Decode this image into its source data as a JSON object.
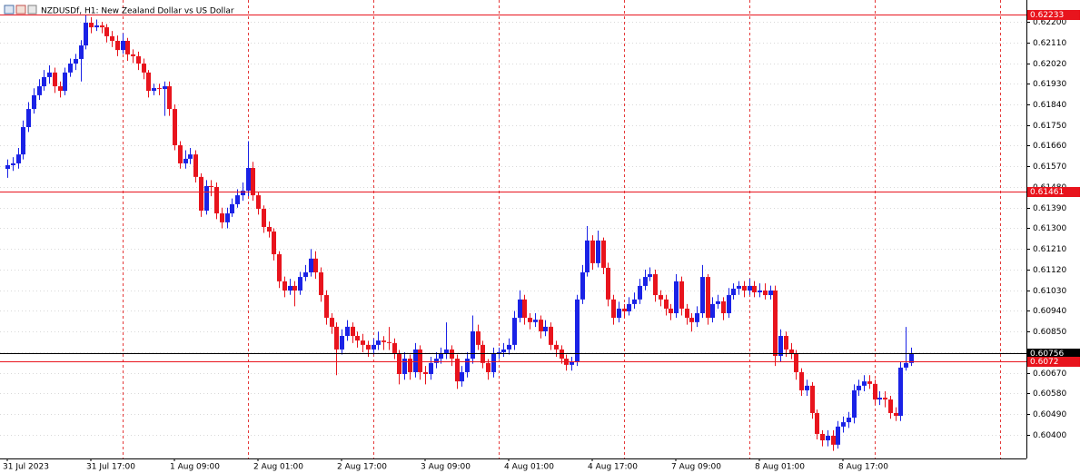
{
  "chart_data": {
    "type": "candlestick",
    "title": "NZDUSDf, H1:  New Zealand Dollar vs US Dollar",
    "up_color": "#1a22e6",
    "down_color": "#e8141d",
    "ylim": [
      0.60297,
      0.62295
    ],
    "yticks": [
      {
        "value": 0.622,
        "label": "0.62200"
      },
      {
        "value": 0.6211,
        "label": "0.62110"
      },
      {
        "value": 0.6202,
        "label": "0.62020"
      },
      {
        "value": 0.6193,
        "label": "0.61930"
      },
      {
        "value": 0.6184,
        "label": "0.61840"
      },
      {
        "value": 0.6175,
        "label": "0.61750"
      },
      {
        "value": 0.6166,
        "label": "0.61660"
      },
      {
        "value": 0.6157,
        "label": "0.61570"
      },
      {
        "value": 0.6148,
        "label": "0.61480"
      },
      {
        "value": 0.6139,
        "label": "0.61390"
      },
      {
        "value": 0.613,
        "label": "0.61300"
      },
      {
        "value": 0.6121,
        "label": "0.61210"
      },
      {
        "value": 0.6112,
        "label": "0.61120"
      },
      {
        "value": 0.6103,
        "label": "0.61030"
      },
      {
        "value": 0.6094,
        "label": "0.60940"
      },
      {
        "value": 0.6085,
        "label": "0.60850"
      },
      {
        "value": 0.6076,
        "label": "0.60760"
      },
      {
        "value": 0.6067,
        "label": "0.60670"
      },
      {
        "value": 0.6058,
        "label": "0.60580"
      },
      {
        "value": 0.6049,
        "label": "0.60490"
      },
      {
        "value": 0.604,
        "label": "0.60400"
      }
    ],
    "grid": true,
    "levels": [
      {
        "value": 0.62233,
        "color": "#e8141d"
      },
      {
        "value": 0.61461,
        "color": "#e8141d"
      },
      {
        "value": 0.60756,
        "color": "#000000"
      },
      {
        "value": 0.6072,
        "color": "#e8141d"
      }
    ],
    "categories": [
      "31 Jul 2023",
      null,
      null,
      null,
      null,
      null,
      null,
      null,
      null,
      null,
      null,
      null,
      null,
      null,
      null,
      null,
      "31 Jul 17:00",
      null,
      null,
      null,
      null,
      null,
      null,
      null,
      null,
      null,
      null,
      null,
      null,
      null,
      null,
      null,
      "1 Aug 09:00",
      null,
      null,
      null,
      null,
      null,
      null,
      null,
      null,
      null,
      null,
      null,
      null,
      null,
      null,
      null,
      "2 Aug 01:00",
      null,
      null,
      null,
      null,
      null,
      null,
      null,
      null,
      null,
      null,
      null,
      null,
      null,
      null,
      null,
      "2 Aug 17:00",
      null,
      null,
      null,
      null,
      null,
      null,
      null,
      null,
      null,
      null,
      null,
      null,
      null,
      null,
      null,
      "3 Aug 09:00",
      null,
      null,
      null,
      null,
      null,
      null,
      null,
      null,
      null,
      null,
      null,
      null,
      null,
      null,
      null,
      "4 Aug 01:00",
      null,
      null,
      null,
      null,
      null,
      null,
      null,
      null,
      null,
      null,
      null,
      null,
      null,
      null,
      null,
      "4 Aug 17:00",
      null,
      null,
      null,
      null,
      null,
      null,
      null,
      null,
      null,
      null,
      null,
      null,
      null,
      null,
      null,
      "7 Aug 09:00",
      null,
      null,
      null,
      null,
      null,
      null,
      null,
      null,
      null,
      null,
      null,
      null,
      null,
      null,
      null,
      "8 Aug 01:00",
      null,
      null,
      null,
      null,
      null,
      null,
      null,
      null,
      null,
      null,
      null,
      null,
      null,
      null,
      null,
      "8 Aug 17:00",
      null,
      null,
      null,
      null,
      null,
      null,
      null,
      null,
      null,
      null,
      null,
      null,
      null
    ],
    "open": [
      0.61559,
      0.61575,
      0.61583,
      0.61622,
      0.61741,
      0.6182,
      0.6188,
      0.61919,
      0.61959,
      0.61979,
      0.61919,
      0.61899,
      0.61979,
      0.62018,
      0.62038,
      0.62097,
      0.62196,
      0.62176,
      0.62184,
      0.62176,
      0.62137,
      0.62117,
      0.62077,
      0.62117,
      0.62058,
      0.6205,
      0.62018,
      0.61979,
      0.61899,
      0.61911,
      0.61907,
      0.61919,
      0.6182,
      0.61662,
      0.61583,
      0.61603,
      0.61622,
      0.61524,
      0.61377,
      0.61484,
      0.6148,
      0.61365,
      0.61326,
      0.61365,
      0.61405,
      0.61444,
      0.61464,
      0.61563,
      0.61444,
      0.61385,
      0.61306,
      0.61286,
      0.61187,
      0.61069,
      0.61029,
      0.61049,
      0.61029,
      0.61088,
      0.61108,
      0.61168,
      0.61108,
      0.61009,
      0.6091,
      0.60871,
      0.60772,
      0.60831,
      0.60871,
      0.60831,
      0.60811,
      0.60792,
      0.60772,
      0.60792,
      0.60811,
      0.60804,
      0.608,
      0.60752,
      0.60665,
      0.60732,
      0.60673,
      0.60772,
      0.60673,
      0.60665,
      0.60713,
      0.60732,
      0.60752,
      0.60772,
      0.60732,
      0.60633,
      0.60673,
      0.60732,
      0.60851,
      0.60792,
      0.60713,
      0.60673,
      0.60752,
      0.6076,
      0.60772,
      0.60792,
      0.6091,
      0.6099,
      0.6091,
      0.60891,
      0.60902,
      0.60851,
      0.60871,
      0.60792,
      0.60772,
      0.60732,
      0.60705,
      0.6072,
      0.6099,
      0.61108,
      0.61247,
      0.61148,
      0.61247,
      0.61128,
      0.6099,
      0.6091,
      0.6095,
      0.60938,
      0.6097,
      0.6099,
      0.61049,
      0.61088,
      0.611,
      0.61009,
      0.6099,
      0.6095,
      0.6093,
      0.61069,
      0.6095,
      0.6091,
      0.60891,
      0.6093,
      0.61088,
      0.6091,
      0.6097,
      0.60982,
      0.6093,
      0.61009,
      0.61037,
      0.61049,
      0.61029,
      0.61049,
      0.61021,
      0.61029,
      0.61009,
      0.61029,
      0.60744,
      0.60831,
      0.60772,
      0.60752,
      0.60673,
      0.60594,
      0.60614,
      0.60495,
      0.60404,
      0.60376,
      0.60396,
      0.60357,
      0.60436,
      0.60455,
      0.60475,
      0.60594,
      0.60614,
      0.60633,
      0.60622,
      0.60554,
      0.60562,
      0.60554,
      0.60495,
      0.60483,
      0.60693,
      0.60713
    ],
    "high": [
      0.616,
      0.6161,
      0.6165,
      0.6177,
      0.6185,
      0.6191,
      0.6195,
      0.6199,
      0.6201,
      0.62,
      0.6194,
      0.62,
      0.6204,
      0.6206,
      0.6212,
      0.6223,
      0.6222,
      0.6221,
      0.622,
      0.6219,
      0.6216,
      0.6214,
      0.6215,
      0.6213,
      0.6208,
      0.6207,
      0.6204,
      0.6199,
      0.6193,
      0.6193,
      0.6194,
      0.6194,
      0.6184,
      0.6168,
      0.6164,
      0.6165,
      0.6164,
      0.6154,
      0.6151,
      0.6151,
      0.615,
      0.6139,
      0.6139,
      0.6143,
      0.6147,
      0.615,
      0.6168,
      0.6159,
      0.6146,
      0.614,
      0.6133,
      0.613,
      0.612,
      0.6109,
      0.6108,
      0.6107,
      0.6111,
      0.6114,
      0.6121,
      0.612,
      0.6113,
      0.6103,
      0.6093,
      0.6089,
      0.6086,
      0.609,
      0.6089,
      0.6085,
      0.6084,
      0.6081,
      0.6082,
      0.6085,
      0.6083,
      0.6087,
      0.6082,
      0.6077,
      0.6076,
      0.6075,
      0.608,
      0.6079,
      0.607,
      0.6074,
      0.6076,
      0.6078,
      0.6089,
      0.6079,
      0.6075,
      0.607,
      0.6076,
      0.6092,
      0.6088,
      0.6081,
      0.6073,
      0.6078,
      0.6078,
      0.608,
      0.6082,
      0.6094,
      0.6103,
      0.6101,
      0.6093,
      0.6093,
      0.6092,
      0.609,
      0.6089,
      0.6081,
      0.6079,
      0.6075,
      0.6074,
      0.6101,
      0.6114,
      0.6131,
      0.6127,
      0.6129,
      0.6126,
      0.6115,
      0.6101,
      0.6098,
      0.6097,
      0.61,
      0.6102,
      0.6108,
      0.6112,
      0.6113,
      0.6112,
      0.6103,
      0.6101,
      0.6097,
      0.611,
      0.6109,
      0.6097,
      0.6093,
      0.6096,
      0.6114,
      0.611,
      0.61,
      0.6101,
      0.61,
      0.6104,
      0.6106,
      0.6107,
      0.6107,
      0.6108,
      0.6107,
      0.6106,
      0.6106,
      0.6105,
      0.6105,
      0.6086,
      0.6085,
      0.608,
      0.6077,
      0.6069,
      0.6064,
      0.6063,
      0.6051,
      0.6042,
      0.6042,
      0.6042,
      0.6046,
      0.6048,
      0.605,
      0.6062,
      0.6064,
      0.6066,
      0.6066,
      0.6064,
      0.6059,
      0.6059,
      0.6057,
      0.6052,
      0.6072,
      0.6087,
      0.6078
    ],
    "low": [
      0.6152,
      0.6155,
      0.6156,
      0.616,
      0.6172,
      0.618,
      0.6186,
      0.619,
      0.6193,
      0.6189,
      0.6187,
      0.6188,
      0.6196,
      0.6199,
      0.6194,
      0.6208,
      0.6215,
      0.6216,
      0.6215,
      0.6211,
      0.6209,
      0.6205,
      0.6206,
      0.6203,
      0.6202,
      0.6199,
      0.6195,
      0.6187,
      0.6188,
      0.6188,
      0.6179,
      0.6179,
      0.6164,
      0.6156,
      0.6156,
      0.6158,
      0.615,
      0.6135,
      0.6136,
      0.6144,
      0.6134,
      0.613,
      0.613,
      0.6135,
      0.6139,
      0.6142,
      0.6144,
      0.6142,
      0.6136,
      0.6128,
      0.6126,
      0.6116,
      0.6104,
      0.61,
      0.6101,
      0.6096,
      0.6101,
      0.6107,
      0.6109,
      0.6108,
      0.6098,
      0.6088,
      0.6084,
      0.6066,
      0.6075,
      0.6081,
      0.608,
      0.6078,
      0.6076,
      0.6074,
      0.6075,
      0.6077,
      0.6077,
      0.6077,
      0.6073,
      0.6062,
      0.6064,
      0.6064,
      0.6065,
      0.6064,
      0.6062,
      0.6064,
      0.6069,
      0.6071,
      0.6073,
      0.607,
      0.606,
      0.6061,
      0.6065,
      0.6071,
      0.6077,
      0.6069,
      0.6064,
      0.6065,
      0.6073,
      0.6074,
      0.6075,
      0.6077,
      0.6089,
      0.6088,
      0.6086,
      0.6087,
      0.6082,
      0.6083,
      0.6077,
      0.6074,
      0.6071,
      0.6068,
      0.6068,
      0.607,
      0.6097,
      0.6109,
      0.6112,
      0.6113,
      0.611,
      0.6096,
      0.6088,
      0.6089,
      0.6091,
      0.6092,
      0.6095,
      0.6097,
      0.6103,
      0.6107,
      0.6098,
      0.6096,
      0.6092,
      0.609,
      0.6091,
      0.6092,
      0.6088,
      0.6085,
      0.6087,
      0.6091,
      0.6088,
      0.6089,
      0.6095,
      0.609,
      0.6091,
      0.6099,
      0.6101,
      0.61,
      0.6101,
      0.61,
      0.61,
      0.6099,
      0.6099,
      0.607,
      0.6072,
      0.6074,
      0.6073,
      0.6064,
      0.6057,
      0.6057,
      0.6047,
      0.6038,
      0.6035,
      0.6035,
      0.6033,
      0.6034,
      0.6041,
      0.6043,
      0.6045,
      0.6057,
      0.6059,
      0.606,
      0.6053,
      0.6053,
      0.6052,
      0.6047,
      0.6046,
      0.6046,
      0.6068,
      0.607
    ],
    "close": [
      0.61575,
      0.61583,
      0.61622,
      0.61741,
      0.6182,
      0.6188,
      0.61919,
      0.61959,
      0.61979,
      0.61919,
      0.61899,
      0.61979,
      0.62018,
      0.62038,
      0.62097,
      0.62196,
      0.62176,
      0.62184,
      0.62176,
      0.62137,
      0.62117,
      0.62077,
      0.62117,
      0.62058,
      0.6205,
      0.62018,
      0.61979,
      0.61899,
      0.61911,
      0.61907,
      0.61919,
      0.6182,
      0.61662,
      0.61583,
      0.61603,
      0.61622,
      0.61524,
      0.61377,
      0.61484,
      0.6148,
      0.61365,
      0.61326,
      0.61365,
      0.61405,
      0.61444,
      0.61464,
      0.61563,
      0.61444,
      0.61385,
      0.61306,
      0.61286,
      0.61187,
      0.61069,
      0.61029,
      0.61049,
      0.61029,
      0.61088,
      0.61108,
      0.61168,
      0.61108,
      0.61009,
      0.6091,
      0.60871,
      0.60772,
      0.60831,
      0.60871,
      0.60831,
      0.60811,
      0.60792,
      0.60772,
      0.60792,
      0.60811,
      0.60804,
      0.608,
      0.60752,
      0.60665,
      0.60732,
      0.60673,
      0.60772,
      0.60673,
      0.60665,
      0.60713,
      0.60732,
      0.60752,
      0.60772,
      0.60732,
      0.60633,
      0.60673,
      0.60732,
      0.60851,
      0.60792,
      0.60713,
      0.60673,
      0.60752,
      0.6076,
      0.60772,
      0.60792,
      0.6091,
      0.6099,
      0.6091,
      0.60891,
      0.60902,
      0.60851,
      0.60871,
      0.60792,
      0.60772,
      0.60732,
      0.60705,
      0.6072,
      0.6099,
      0.61108,
      0.61247,
      0.61148,
      0.61247,
      0.61128,
      0.6099,
      0.6091,
      0.6095,
      0.60938,
      0.6097,
      0.6099,
      0.61049,
      0.61088,
      0.611,
      0.61009,
      0.6099,
      0.6095,
      0.6093,
      0.61069,
      0.6095,
      0.6091,
      0.60891,
      0.6093,
      0.61088,
      0.6091,
      0.6097,
      0.60982,
      0.6093,
      0.61009,
      0.61037,
      0.61049,
      0.61029,
      0.61049,
      0.61021,
      0.61029,
      0.61009,
      0.61029,
      0.60744,
      0.60831,
      0.60772,
      0.60752,
      0.60673,
      0.60594,
      0.60614,
      0.60495,
      0.60404,
      0.60376,
      0.60396,
      0.60357,
      0.60436,
      0.60455,
      0.60475,
      0.60594,
      0.60614,
      0.60633,
      0.60622,
      0.60554,
      0.60562,
      0.60554,
      0.60495,
      0.60483,
      0.60693,
      0.60713,
      0.60756
    ]
  }
}
